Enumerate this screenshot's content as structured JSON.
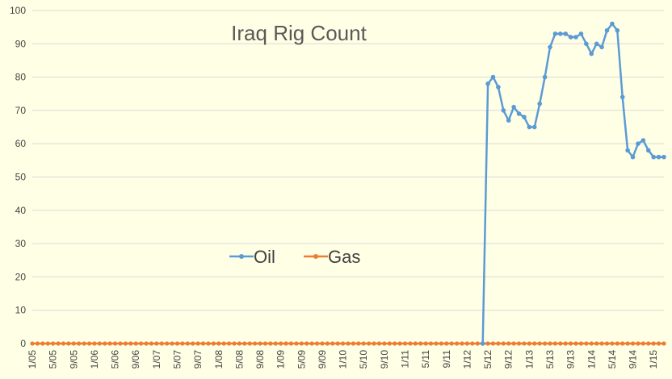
{
  "chart_data": {
    "type": "line",
    "title": "Iraq Rig Count",
    "xlabel": "",
    "ylabel": "",
    "ylim": [
      0,
      100
    ],
    "yticks": [
      0,
      10,
      20,
      30,
      40,
      50,
      60,
      70,
      80,
      90,
      100
    ],
    "grid": true,
    "legend_position": "center-left",
    "x_tick_labels": [
      "1/05",
      "5/05",
      "9/05",
      "1/06",
      "5/06",
      "9/06",
      "1/07",
      "5/07",
      "9/07",
      "1/08",
      "5/08",
      "9/08",
      "1/09",
      "5/09",
      "9/09",
      "1/10",
      "5/10",
      "9/10",
      "1/11",
      "5/11",
      "9/11",
      "1/12",
      "5/12",
      "9/12",
      "1/13",
      "5/13",
      "9/13",
      "1/14",
      "5/14",
      "9/14",
      "1/15"
    ],
    "x_start": "2005-01",
    "x_end": "2015-03",
    "series": [
      {
        "name": "Oil",
        "color": "#5B9BD5",
        "x": [
          "2012-04",
          "2012-05",
          "2012-06",
          "2012-07",
          "2012-08",
          "2012-09",
          "2012-10",
          "2012-11",
          "2012-12",
          "2013-01",
          "2013-02",
          "2013-03",
          "2013-04",
          "2013-05",
          "2013-06",
          "2013-07",
          "2013-08",
          "2013-09",
          "2013-10",
          "2013-11",
          "2013-12",
          "2014-01",
          "2014-02",
          "2014-03",
          "2014-04",
          "2014-05",
          "2014-06",
          "2014-07",
          "2014-08",
          "2014-09",
          "2014-10",
          "2014-11",
          "2014-12",
          "2015-01",
          "2015-02",
          "2015-03"
        ],
        "values": [
          0,
          78,
          80,
          77,
          70,
          67,
          71,
          69,
          68,
          65,
          65,
          72,
          80,
          89,
          93,
          93,
          93,
          92,
          92,
          93,
          90,
          87,
          90,
          89,
          94,
          96,
          94,
          74,
          58,
          56,
          60,
          61,
          58,
          56,
          56,
          56
        ]
      },
      {
        "name": "Gas",
        "color": "#ED7D31",
        "x_range": [
          "2005-01",
          "2015-03"
        ],
        "constant_value": 0
      }
    ]
  }
}
